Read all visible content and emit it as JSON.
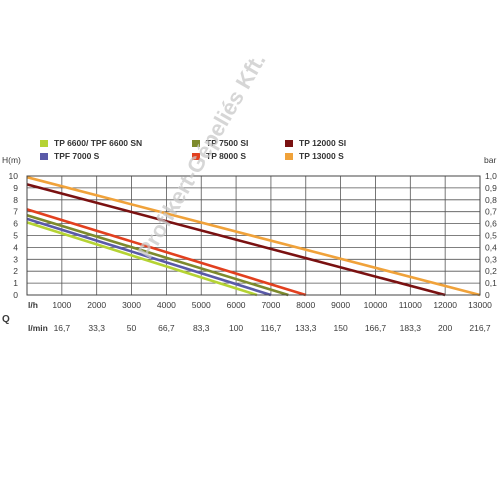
{
  "watermark": "Profikert-Gépeliés Kft.",
  "chart_data": {
    "type": "line",
    "y_left_label": "H(m)",
    "y_right_label": "bar",
    "x_row1_label": "l/h",
    "x_row2_label": "l/min",
    "q_label": "Q",
    "xlim": [
      0,
      13000
    ],
    "ylim": [
      0,
      10
    ],
    "x_ticks": [
      "1000",
      "2000",
      "3000",
      "4000",
      "5000",
      "6000",
      "7000",
      "8000",
      "9000",
      "10000",
      "11000",
      "12000",
      "13000"
    ],
    "x_ticks_lmin": [
      "16,7",
      "33,3",
      "50",
      "66,7",
      "83,3",
      "100",
      "116,7",
      "133,3",
      "150",
      "166,7",
      "183,3",
      "200",
      "216,7"
    ],
    "y_ticks_left": [
      "0",
      "1",
      "2",
      "3",
      "4",
      "5",
      "6",
      "7",
      "8",
      "9",
      "10"
    ],
    "y_ticks_right": [
      "0",
      "0,1",
      "0,2",
      "0,3",
      "0,4",
      "0,5",
      "0,6",
      "0,7",
      "0,8",
      "0,9",
      "1,0"
    ],
    "grid": true,
    "legend_position": "top",
    "series": [
      {
        "name": "TP 6600/ TPF 6600 SN",
        "color": "#b5d334",
        "x": [
          0,
          6600
        ],
        "y": [
          6.1,
          0
        ]
      },
      {
        "name": "TPF 7000 S",
        "color": "#5a5aa8",
        "x": [
          0,
          7000
        ],
        "y": [
          6.4,
          0
        ]
      },
      {
        "name": "TP 7500 SI",
        "color": "#7d8a2c",
        "x": [
          0,
          7500
        ],
        "y": [
          6.7,
          0
        ]
      },
      {
        "name": "TP 8000 S",
        "color": "#e2401f",
        "x": [
          0,
          8000
        ],
        "y": [
          7.2,
          0
        ]
      },
      {
        "name": "TP 12000 SI",
        "color": "#7a1111",
        "x": [
          0,
          12000
        ],
        "y": [
          9.3,
          0
        ]
      },
      {
        "name": "TP 13000 S",
        "color": "#f0a23a",
        "x": [
          0,
          13000
        ],
        "y": [
          9.9,
          0
        ]
      }
    ],
    "legend_order": [
      0,
      2,
      4,
      1,
      3,
      5
    ]
  }
}
